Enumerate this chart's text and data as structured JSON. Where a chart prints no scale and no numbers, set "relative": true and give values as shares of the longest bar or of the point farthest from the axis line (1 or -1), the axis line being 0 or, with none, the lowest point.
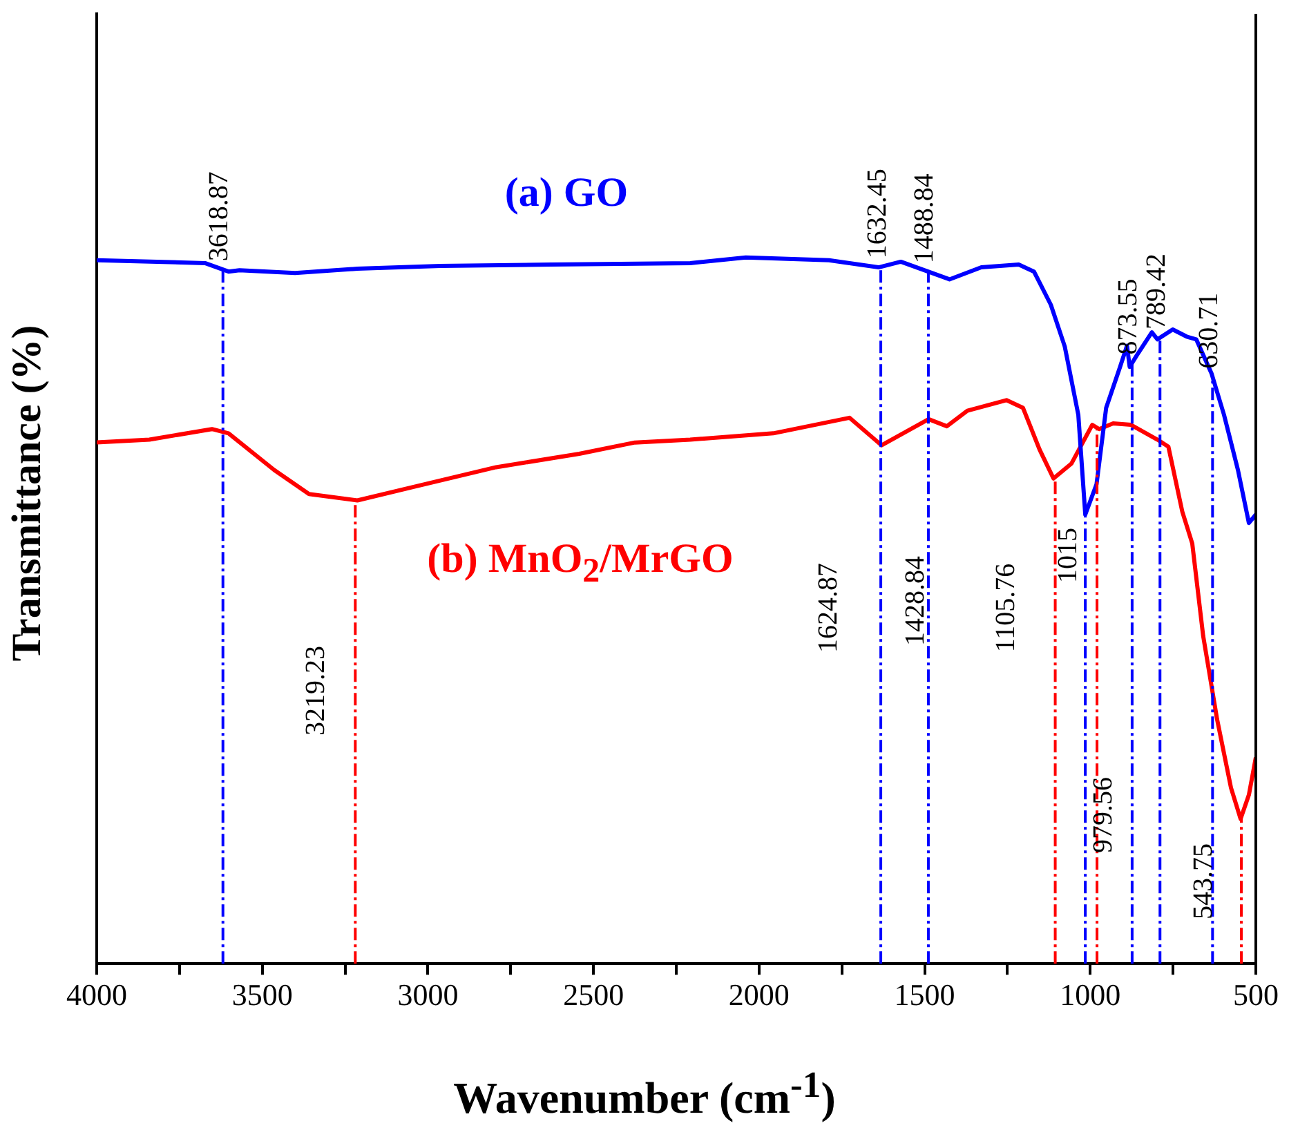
{
  "chart_data": {
    "type": "line",
    "xlabel": "Wavenumber (cm$^{-1}$)",
    "ylabel": "Transmittance (%)",
    "relative": true,
    "legend": false,
    "grid": false,
    "xlim": [
      4000,
      500
    ],
    "xticks": [
      4000,
      {
        "value": 3750,
        "label": null
      },
      3500,
      {
        "value": 3250,
        "label": null
      },
      3000,
      {
        "value": 2750,
        "label": null
      },
      2500,
      {
        "value": 2250,
        "label": null
      },
      2000,
      {
        "value": 1750,
        "label": null
      },
      1500,
      {
        "value": 1250,
        "label": null
      },
      1000,
      {
        "value": 750,
        "label": null
      },
      500
    ],
    "series": [
      {
        "name": "(a) GO",
        "color": "#0000ff",
        "x": [
          4000,
          3673,
          3602,
          3569,
          3401,
          3213,
          2962,
          2627,
          2208,
          2040,
          1789,
          1639,
          1572,
          1425,
          1329,
          1216,
          1170,
          1119,
          1077,
          1036,
          1015,
          981,
          952,
          910,
          889,
          881,
          860,
          814,
          797,
          751,
          709,
          680,
          634,
          596,
          554,
          521,
          500
        ],
        "values": [
          0.996,
          0.992,
          0.98,
          0.982,
          0.978,
          0.984,
          0.988,
          0.99,
          0.992,
          1.0,
          0.996,
          0.986,
          0.994,
          0.969,
          0.986,
          0.99,
          0.98,
          0.933,
          0.874,
          0.777,
          0.636,
          0.679,
          0.787,
          0.845,
          0.875,
          0.845,
          0.861,
          0.894,
          0.884,
          0.898,
          0.888,
          0.884,
          0.836,
          0.777,
          0.699,
          0.624,
          0.636
        ]
      },
      {
        "name": "(b) MnO$_{2}$/MrGO",
        "color": "#ff0000",
        "x": [
          4000,
          3841,
          3652,
          3602,
          3464,
          3359,
          3213,
          3045,
          2794,
          2543,
          2375,
          2208,
          1957,
          1727,
          1630,
          1488,
          1433,
          1371,
          1253,
          1203,
          1153,
          1111,
          1057,
          994,
          973,
          931,
          877,
          797,
          764,
          722,
          692,
          659,
          617,
          575,
          546,
          521,
          500
        ],
        "values": [
          0.738,
          0.742,
          0.757,
          0.751,
          0.699,
          0.665,
          0.656,
          0.675,
          0.703,
          0.722,
          0.738,
          0.742,
          0.751,
          0.773,
          0.734,
          0.771,
          0.761,
          0.783,
          0.798,
          0.787,
          0.728,
          0.687,
          0.708,
          0.763,
          0.757,
          0.765,
          0.763,
          0.742,
          0.732,
          0.64,
          0.595,
          0.464,
          0.346,
          0.249,
          0.205,
          0.239,
          0.292
        ]
      }
    ],
    "ref_lines": [
      {
        "axis": "x",
        "value": 3618.87,
        "label": "3618.87",
        "color": "#0000ff",
        "line_style": "dashed"
      },
      {
        "axis": "x",
        "value": 3219.23,
        "label": "3219.23",
        "color": "#ff0000",
        "line_style": "dashed"
      },
      {
        "axis": "x",
        "value": 1632.45,
        "label": "1632.45",
        "color": "#0000ff",
        "line_style": "dashed"
      },
      {
        "axis": "x",
        "value": 1488.84,
        "label": "1488.84",
        "color": "#0000ff",
        "line_style": "dashed"
      },
      {
        "axis": "x",
        "value": 1105.76,
        "label": "1105.76",
        "color": "#ff0000",
        "line_style": "dashed"
      },
      {
        "axis": "x",
        "value": 1015,
        "label": "1015",
        "color": "#0000ff",
        "line_style": "dashed"
      },
      {
        "axis": "x",
        "value": 979.56,
        "label": "979.56",
        "color": "#ff0000",
        "line_style": "dashed"
      },
      {
        "axis": "x",
        "value": 873.55,
        "label": "873.55",
        "color": "#0000ff",
        "line_style": "dashed"
      },
      {
        "axis": "x",
        "value": 789.42,
        "label": "789.42",
        "color": "#0000ff",
        "line_style": "dashed"
      },
      {
        "axis": "x",
        "value": 630.71,
        "label": "630.71",
        "color": "#0000ff",
        "line_style": "dashed"
      },
      {
        "axis": "x",
        "value": 543.75,
        "label": "543.75",
        "color": "#ff0000",
        "line_style": "dashed"
      }
    ],
    "annotations": [
      "1624.87",
      "1428.84"
    ]
  }
}
